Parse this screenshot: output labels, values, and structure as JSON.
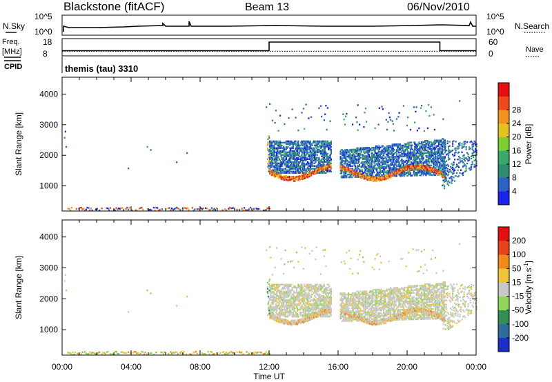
{
  "header": {
    "title": "Blackstone (fitACF)",
    "beam": "Beam 13",
    "date": "06/Nov/2010"
  },
  "chart_data": [
    {
      "type": "line",
      "panel": "noise",
      "left_label": "N.Sky",
      "right_label": "N.Search",
      "left_ticks": [
        "10^5",
        "10^0"
      ],
      "right_ticks": [
        "10^5",
        "10^0"
      ]
    },
    {
      "type": "line",
      "panel": "frequency",
      "left_label": "Freq.",
      "left_unit": "[MHz]",
      "left_ticks": [
        18,
        8
      ],
      "right_label": "Nave",
      "right_ticks": [
        60,
        0
      ],
      "cpid_label": "CPID",
      "cpid_value": "themis (tau) 3310",
      "series": [
        {
          "name": "Freq.",
          "x": [
            0,
            12.0,
            12.0,
            21.9,
            21.9,
            24
          ],
          "y": [
            11,
            11,
            16,
            16,
            11,
            11
          ]
        },
        {
          "name": "Nave",
          "x": [
            0,
            24
          ],
          "y": [
            16,
            16
          ]
        }
      ]
    },
    {
      "type": "heatmap",
      "panel": "power",
      "ylabel": "Slant Range [km]",
      "yticks": [
        1000,
        2000,
        3000,
        4000
      ],
      "ylim": [
        180,
        4550
      ],
      "xlim": [
        0,
        24
      ],
      "colorbar_label": "Power [dB]",
      "colorbar_ticks": [
        "4",
        "8",
        "12",
        "16",
        "20",
        "24",
        "28"
      ],
      "colorbar_colors": [
        "#1c22ee",
        "#2c62c8",
        "#2f8a72",
        "#3aa86a",
        "#7cd12e",
        "#e6c21e",
        "#f3931e",
        "#ee4a1a",
        "#e60f0f"
      ]
    },
    {
      "type": "heatmap",
      "panel": "velocity",
      "ylabel": "Slant Range [km]",
      "yticks": [
        1000,
        2000,
        3000,
        4000
      ],
      "ylim": [
        180,
        4550
      ],
      "xlim": [
        0,
        24
      ],
      "xticks": [
        "00:00",
        "04:00",
        "08:00",
        "12:00",
        "16:00",
        "20:00",
        "00:00"
      ],
      "xlabel": "Time UT",
      "colorbar_label": "Velocity [m s",
      "colorbar_label_sup": "-1",
      "colorbar_label_end": "]",
      "colorbar_ticks": [
        "200",
        "100",
        "50",
        "15",
        "-15",
        "-50",
        "-100",
        "-200"
      ],
      "colorbar_colors": [
        "#1b2ec8",
        "#2e6c9a",
        "#2f8f55",
        "#8fd65a",
        "#c8c8c8",
        "#f0c43a",
        "#f08a1a",
        "#e8431a",
        "#e60f0f"
      ]
    }
  ]
}
